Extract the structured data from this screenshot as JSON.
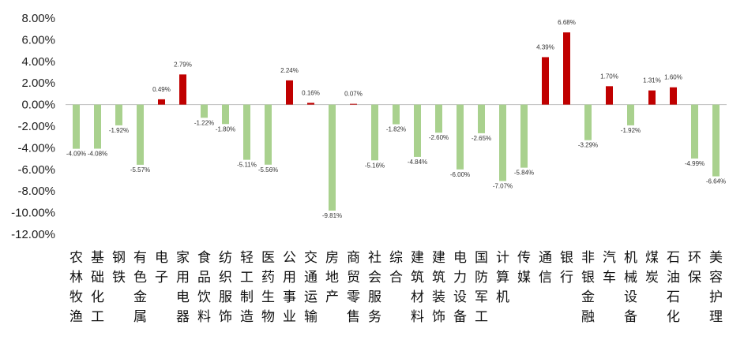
{
  "chart_data": {
    "type": "bar",
    "categories": [
      "农林牧渔",
      "基础化工",
      "钢铁",
      "有色金属",
      "电子",
      "家用电器",
      "食品饮料",
      "纺织服饰",
      "轻工制造",
      "医药生物",
      "公用事业",
      "交通运输",
      "房地产",
      "商贸零售",
      "社会服务",
      "综合",
      "建筑材料",
      "建筑装饰",
      "电力设备",
      "国防军工",
      "计算机",
      "传媒",
      "通信",
      "银行",
      "非银金融",
      "汽车",
      "机械设备",
      "煤炭",
      "石油石化",
      "环保",
      "美容护理"
    ],
    "values": [
      -4.09,
      -4.08,
      -1.92,
      -5.57,
      0.49,
      2.79,
      -1.22,
      -1.8,
      -5.11,
      -5.56,
      2.24,
      0.16,
      -9.81,
      0.07,
      -5.16,
      -1.82,
      -4.84,
      -2.6,
      -6.0,
      -2.65,
      -7.07,
      -5.84,
      4.39,
      6.68,
      -3.29,
      1.7,
      -1.92,
      1.31,
      1.6,
      -4.99,
      -6.64
    ],
    "value_labels": [
      "-4.09%",
      "-4.08%",
      "-1.92%",
      "-5.57%",
      "0.49%",
      "2.79%",
      "-1.22%",
      "-1.80%",
      "-5.11%",
      "-5.56%",
      "2.24%",
      "0.16%",
      "-9.81%",
      "0.07%",
      "-5.16%",
      "-1.82%",
      "-4.84%",
      "-2.60%",
      "-6.00%",
      "-2.65%",
      "-7.07%",
      "-5.84%",
      "4.39%",
      "6.68%",
      "-3.29%",
      "1.70%",
      "-1.92%",
      "1.31%",
      "1.60%",
      "-4.99%",
      "-6.64%"
    ],
    "yticks": [
      "8.00%",
      "6.00%",
      "4.00%",
      "2.00%",
      "0.00%",
      "-2.00%",
      "-4.00%",
      "-6.00%",
      "-8.00%",
      "-10.00%",
      "-12.00%"
    ],
    "ylim": [
      -12,
      8
    ],
    "grid": false,
    "legend": "none",
    "colors": {
      "positive": "#c00000",
      "negative": "#a9d18e",
      "axis": "#bfbfbf"
    }
  }
}
